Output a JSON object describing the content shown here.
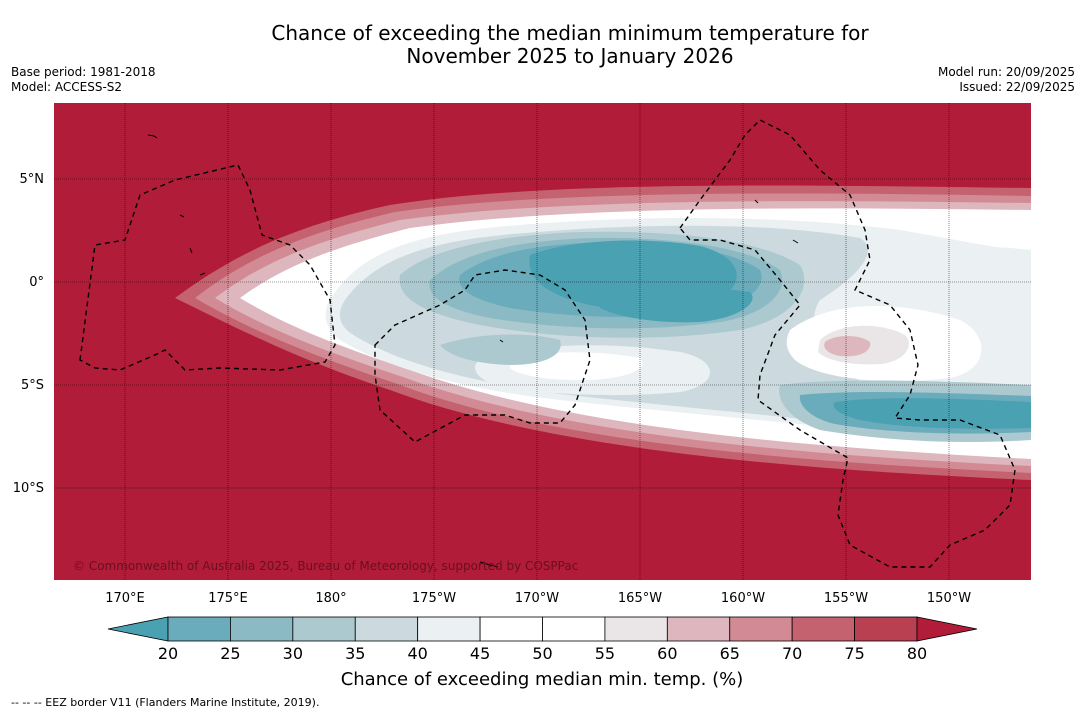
{
  "header": {
    "title_line1": "Chance of exceeding the median minimum temperature for",
    "title_line2": "November 2025 to January 2026",
    "base_period": "Base period: 1981-2018",
    "model": "Model: ACCESS-S2",
    "model_run": "Model run: 20/09/2025",
    "issued": "Issued: 22/09/2025"
  },
  "map": {
    "copyright": "© Commonwealth of Australia 2025, Bureau of Meteorology, supported by COSPPac",
    "lon_labels": [
      "170°E",
      "175°E",
      "180°",
      "175°W",
      "170°W",
      "165°W",
      "160°W",
      "155°W",
      "150°W"
    ],
    "lat_labels": [
      "5°N",
      "0°",
      "5°S",
      "10°S"
    ],
    "colors": {
      "high": "#b11c38",
      "ocean_mid": "#ffffff",
      "low": "#4aa1b2"
    }
  },
  "colorbar": {
    "ticks": [
      "20",
      "25",
      "30",
      "35",
      "40",
      "45",
      "50",
      "55",
      "60",
      "65",
      "70",
      "75",
      "80"
    ],
    "colors": [
      "#4aa1b2",
      "#6aacbb",
      "#8bbac5",
      "#acc9d0",
      "#ccdadf",
      "#ebf0f2",
      "#ffffff",
      "#ffffff",
      "#eae5e7",
      "#ddb6be",
      "#d28b94",
      "#c56270",
      "#b94050",
      "#b11c38"
    ],
    "title": "Chance of exceeding median min. temp. (%)"
  },
  "footer": {
    "legend": "--  --  -- EEZ border V11 (Flanders Marine Institute, 2019)."
  }
}
